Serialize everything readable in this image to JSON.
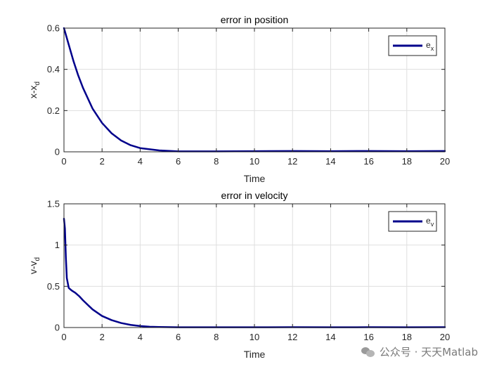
{
  "chart_data": [
    {
      "type": "line",
      "title": "error in position",
      "xlabel": "Time",
      "ylabel": "x-x_d",
      "xlim": [
        0,
        20
      ],
      "ylim": [
        0,
        0.6
      ],
      "xticks": [
        0,
        2,
        4,
        6,
        8,
        10,
        12,
        14,
        16,
        18,
        20
      ],
      "yticks": [
        0,
        0.2,
        0.4,
        0.6
      ],
      "ytick_labels": [
        "0",
        "0.2",
        "0.4",
        "0.6"
      ],
      "grid": true,
      "legend_position": "top-right",
      "color": "#00008b",
      "series": [
        {
          "name": "e_x",
          "x": [
            0,
            0.25,
            0.5,
            0.75,
            1,
            1.5,
            2,
            2.5,
            3,
            3.5,
            4,
            5,
            6,
            8,
            10,
            12,
            14,
            16,
            18,
            20
          ],
          "values": [
            0.6,
            0.52,
            0.44,
            0.37,
            0.31,
            0.21,
            0.14,
            0.09,
            0.055,
            0.032,
            0.018,
            0.007,
            0.002,
            0.002,
            0.003,
            0.004,
            0.003,
            0.004,
            0.003,
            0.004
          ]
        }
      ]
    },
    {
      "type": "line",
      "title": "error in velocity",
      "xlabel": "Time",
      "ylabel": "v-v_d",
      "xlim": [
        0,
        20
      ],
      "ylim": [
        0,
        1.5
      ],
      "xticks": [
        0,
        2,
        4,
        6,
        8,
        10,
        12,
        14,
        16,
        18,
        20
      ],
      "yticks": [
        0,
        0.5,
        1,
        1.5
      ],
      "ytick_labels": [
        "0",
        "0.5",
        "1",
        "1.5"
      ],
      "grid": true,
      "legend_position": "top-right",
      "color": "#00008b",
      "series": [
        {
          "name": "e_v",
          "x": [
            0,
            0.05,
            0.1,
            0.15,
            0.25,
            0.4,
            0.6,
            0.8,
            1,
            1.5,
            2,
            2.5,
            3,
            3.5,
            4,
            4.5,
            5,
            6,
            8,
            10,
            12,
            14,
            16,
            18,
            20
          ],
          "values": [
            1.32,
            1.2,
            0.85,
            0.6,
            0.48,
            0.45,
            0.42,
            0.38,
            0.33,
            0.22,
            0.14,
            0.09,
            0.055,
            0.032,
            0.018,
            0.01,
            0.006,
            0.003,
            0.003,
            0.003,
            0.004,
            0.003,
            0.004,
            0.003,
            0.004
          ]
        }
      ]
    }
  ],
  "watermark": {
    "text": "公众号 · 天天Matlab",
    "icon": "wechat-icon"
  }
}
